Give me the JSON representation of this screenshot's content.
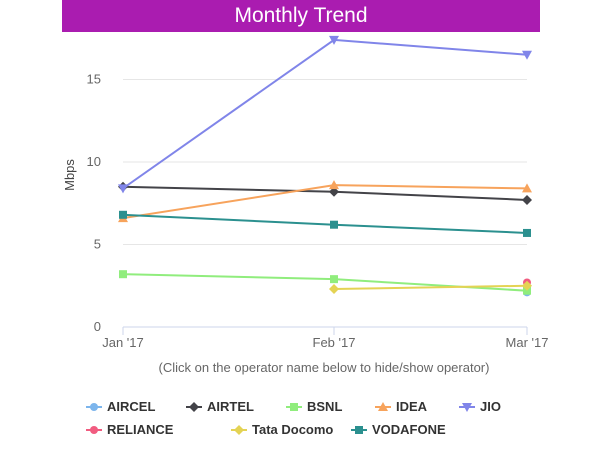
{
  "header": {
    "title": "Monthly Trend",
    "color": "#aa1cb0"
  },
  "hint": "(Click on the operator name below to hide/show operator)",
  "chart_data": {
    "type": "line",
    "categories": [
      "Jan '17",
      "Feb '17",
      "Mar '17"
    ],
    "ylabel": "Mbps",
    "xlabel": "",
    "ylim": [
      0,
      18
    ],
    "yticks": [
      0,
      5,
      10,
      15
    ],
    "grid": true,
    "legend_position": "bottom",
    "series": [
      {
        "name": "AIRCEL",
        "color": "#7cb5ec",
        "marker": "circle",
        "values": [
          null,
          null,
          2.1
        ]
      },
      {
        "name": "AIRTEL",
        "color": "#434348",
        "marker": "diamond",
        "values": [
          8.5,
          8.2,
          7.7
        ]
      },
      {
        "name": "BSNL",
        "color": "#90ed7d",
        "marker": "square",
        "values": [
          3.2,
          2.9,
          2.2
        ]
      },
      {
        "name": "IDEA",
        "color": "#f7a35c",
        "marker": "triangle",
        "values": [
          6.6,
          8.6,
          8.4
        ]
      },
      {
        "name": "JIO",
        "color": "#8085e9",
        "marker": "triangle-down",
        "values": [
          8.4,
          17.4,
          16.5
        ]
      },
      {
        "name": "RELIANCE",
        "color": "#f15c80",
        "marker": "circle",
        "values": [
          null,
          null,
          2.7
        ]
      },
      {
        "name": "Tata Docomo",
        "color": "#e4d354",
        "marker": "diamond",
        "values": [
          null,
          2.3,
          2.5
        ]
      },
      {
        "name": "VODAFONE",
        "color": "#2b908f",
        "marker": "square",
        "values": [
          6.8,
          6.2,
          5.7
        ]
      }
    ]
  }
}
